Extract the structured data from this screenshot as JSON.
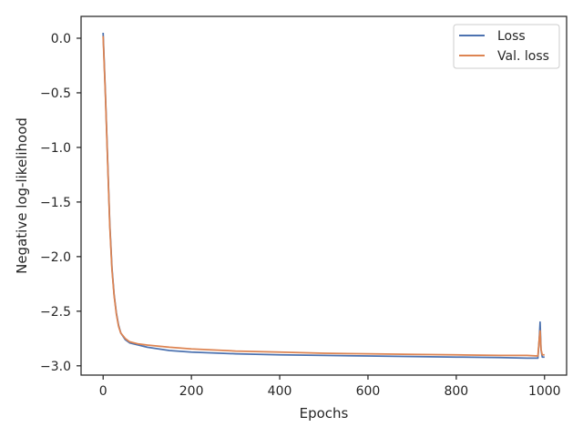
{
  "chart_data": {
    "type": "line",
    "title": "",
    "xlabel": "Epochs",
    "ylabel": "Negative log-likelihood",
    "xlim": [
      -50,
      1050
    ],
    "ylim": [
      -3.085,
      0.2
    ],
    "x_ticks": [
      0,
      200,
      400,
      600,
      800,
      1000
    ],
    "x_tick_labels": [
      "0",
      "200",
      "400",
      "600",
      "800",
      "1000"
    ],
    "y_ticks": [
      0.0,
      -0.5,
      -1.0,
      -1.5,
      -2.0,
      -2.5,
      -3.0
    ],
    "y_tick_labels": [
      "0.0",
      "−0.5",
      "−1.0",
      "−1.5",
      "−2.0",
      "−2.5",
      "−3.0"
    ],
    "grid": false,
    "legend_position": "top-right",
    "series": [
      {
        "name": "Loss",
        "color": "#4c72b0",
        "x": [
          0,
          5,
          10,
          15,
          20,
          25,
          30,
          35,
          40,
          50,
          60,
          80,
          100,
          150,
          200,
          300,
          400,
          500,
          600,
          700,
          800,
          900,
          960,
          985,
          988,
          990,
          992,
          995,
          1000
        ],
        "y": [
          0.05,
          -0.5,
          -1.1,
          -1.7,
          -2.1,
          -2.35,
          -2.52,
          -2.63,
          -2.7,
          -2.76,
          -2.79,
          -2.81,
          -2.83,
          -2.86,
          -2.875,
          -2.89,
          -2.9,
          -2.905,
          -2.91,
          -2.915,
          -2.92,
          -2.925,
          -2.93,
          -2.93,
          -2.75,
          -2.6,
          -2.85,
          -2.92,
          -2.92
        ]
      },
      {
        "name": "Val. loss",
        "color": "#dd8452",
        "x": [
          0,
          5,
          10,
          15,
          20,
          25,
          30,
          35,
          40,
          50,
          60,
          80,
          100,
          150,
          200,
          300,
          400,
          500,
          600,
          700,
          800,
          900,
          960,
          985,
          988,
          990,
          992,
          995,
          1000
        ],
        "y": [
          0.02,
          -0.52,
          -1.12,
          -1.72,
          -2.12,
          -2.36,
          -2.53,
          -2.64,
          -2.7,
          -2.75,
          -2.78,
          -2.8,
          -2.81,
          -2.83,
          -2.845,
          -2.865,
          -2.875,
          -2.885,
          -2.89,
          -2.895,
          -2.9,
          -2.905,
          -2.905,
          -2.91,
          -2.75,
          -2.68,
          -2.85,
          -2.9,
          -2.9
        ]
      }
    ]
  }
}
